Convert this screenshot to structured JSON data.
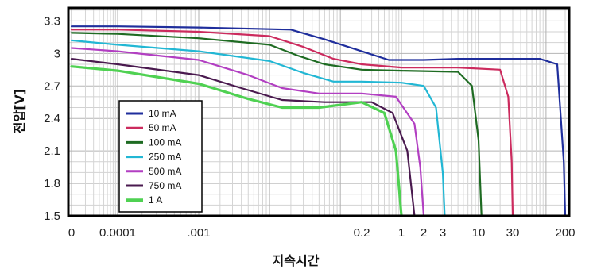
{
  "chart_data": {
    "type": "line",
    "title": "",
    "xlabel": "지속시간",
    "ylabel": "전압[V]",
    "x_scale": "log",
    "grid": true,
    "legend_position": "bottom-left",
    "ylim": [
      1.5,
      3.42
    ],
    "x_tick_labels": [
      "0",
      "0.0001",
      ".001",
      "0.2",
      "1",
      "2",
      "3",
      "10",
      "30",
      "200"
    ],
    "y_ticks": [
      1.5,
      1.8,
      2.1,
      2.4,
      2.7,
      3,
      3.3
    ],
    "y_tick_labels": [
      "1.5",
      "1.8",
      "2.1",
      "2.4",
      "2.7",
      "3",
      "3.3"
    ],
    "series": [
      {
        "name": "10 mA",
        "color": "#1f2e9c",
        "width": 2.2,
        "points": [
          [
            0,
            3.25
          ],
          [
            0.0001,
            3.25
          ],
          [
            0.001,
            3.24
          ],
          [
            0.02,
            3.22
          ],
          [
            0.06,
            3.13
          ],
          [
            0.2,
            3.02
          ],
          [
            0.6,
            2.94
          ],
          [
            2,
            2.94
          ],
          [
            5,
            2.95
          ],
          [
            20,
            2.95
          ],
          [
            80,
            2.95
          ],
          [
            150,
            2.9
          ],
          [
            190,
            2.0
          ],
          [
            200,
            1.5
          ]
        ]
      },
      {
        "name": "50 mA",
        "color": "#cc2b5e",
        "width": 2.2,
        "points": [
          [
            0,
            3.22
          ],
          [
            0.0001,
            3.22
          ],
          [
            0.001,
            3.2
          ],
          [
            0.01,
            3.16
          ],
          [
            0.03,
            3.06
          ],
          [
            0.08,
            2.95
          ],
          [
            0.2,
            2.9
          ],
          [
            1,
            2.87
          ],
          [
            5,
            2.87
          ],
          [
            20,
            2.85
          ],
          [
            26,
            2.6
          ],
          [
            29,
            2.0
          ],
          [
            30,
            1.5
          ]
        ]
      },
      {
        "name": "100 mA",
        "color": "#1e6b22",
        "width": 2.2,
        "points": [
          [
            0,
            3.19
          ],
          [
            0.0001,
            3.18
          ],
          [
            0.001,
            3.14
          ],
          [
            0.01,
            3.08
          ],
          [
            0.025,
            2.98
          ],
          [
            0.06,
            2.9
          ],
          [
            0.2,
            2.85
          ],
          [
            1,
            2.84
          ],
          [
            5,
            2.83
          ],
          [
            8,
            2.7
          ],
          [
            10,
            2.2
          ],
          [
            11,
            1.5
          ]
        ]
      },
      {
        "name": "250 mA",
        "color": "#22b7d4",
        "width": 2.2,
        "points": [
          [
            0,
            3.12
          ],
          [
            0.0001,
            3.08
          ],
          [
            0.001,
            3.02
          ],
          [
            0.01,
            2.93
          ],
          [
            0.03,
            2.82
          ],
          [
            0.08,
            2.74
          ],
          [
            0.2,
            2.74
          ],
          [
            1,
            2.73
          ],
          [
            2,
            2.7
          ],
          [
            2.6,
            2.5
          ],
          [
            3,
            1.9
          ],
          [
            3.2,
            1.5
          ]
        ]
      },
      {
        "name": "500 mA",
        "color": "#b23fc2",
        "width": 2.2,
        "points": [
          [
            0,
            3.05
          ],
          [
            0.0001,
            3.02
          ],
          [
            0.001,
            2.94
          ],
          [
            0.005,
            2.8
          ],
          [
            0.015,
            2.68
          ],
          [
            0.05,
            2.63
          ],
          [
            0.2,
            2.63
          ],
          [
            0.8,
            2.6
          ],
          [
            1.5,
            2.35
          ],
          [
            1.8,
            1.95
          ],
          [
            2,
            1.5
          ]
        ]
      },
      {
        "name": "750 mA",
        "color": "#4a1a4f",
        "width": 2.2,
        "points": [
          [
            0,
            2.95
          ],
          [
            0.0001,
            2.9
          ],
          [
            0.001,
            2.8
          ],
          [
            0.004,
            2.68
          ],
          [
            0.015,
            2.57
          ],
          [
            0.06,
            2.55
          ],
          [
            0.3,
            2.55
          ],
          [
            0.7,
            2.45
          ],
          [
            1.2,
            2.1
          ],
          [
            1.5,
            1.5
          ]
        ]
      },
      {
        "name": "1 A",
        "color": "#4fd152",
        "width": 3.2,
        "points": [
          [
            0,
            2.88
          ],
          [
            0.0001,
            2.84
          ],
          [
            0.001,
            2.72
          ],
          [
            0.005,
            2.58
          ],
          [
            0.015,
            2.5
          ],
          [
            0.05,
            2.5
          ],
          [
            0.2,
            2.55
          ],
          [
            0.5,
            2.45
          ],
          [
            0.8,
            2.1
          ],
          [
            1,
            1.5
          ]
        ]
      }
    ]
  }
}
